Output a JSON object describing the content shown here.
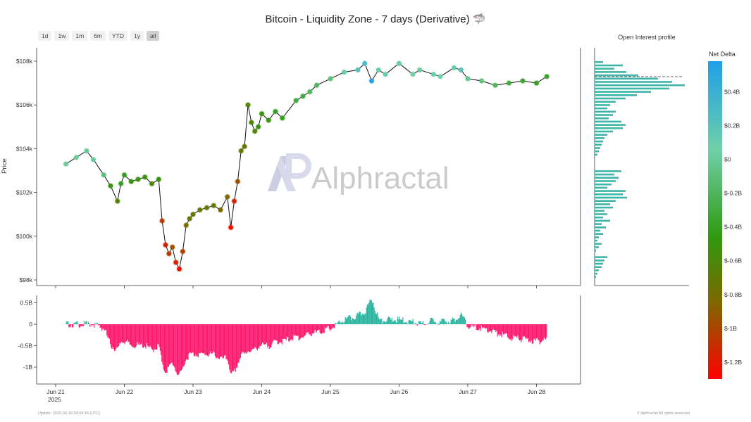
{
  "title": "Bitcoin - Liquidity Zone - 7 days (Derivative) 🦈",
  "range_buttons": [
    "1d",
    "1w",
    "1m",
    "6m",
    "YTD",
    "1y",
    "all"
  ],
  "active_range": "all",
  "watermark": "Alphractal",
  "footer_left": "Update: 2025-06-28 04:04:48 (UTC)",
  "footer_right": "© Alphractal All rights reserved",
  "chart_data": [
    {
      "type": "scatter",
      "subtype": "price line colored by net delta",
      "ylabel": "Price",
      "ylim": [
        97800,
        109100
      ],
      "yticks": [
        "$98k",
        "$100k",
        "$102k",
        "$104k",
        "$106k",
        "$108k"
      ],
      "xticks": [
        "Jun 21\n2025",
        "Jun 22",
        "Jun 23",
        "Jun 24",
        "Jun 25",
        "Jun 26",
        "Jun 27",
        "Jun 28"
      ],
      "x_days": [
        21.15,
        21.3,
        21.45,
        21.55,
        21.7,
        21.8,
        21.9,
        21.95,
        22.0,
        22.1,
        22.2,
        22.3,
        22.4,
        22.5,
        22.55,
        22.6,
        22.65,
        22.7,
        22.75,
        22.8,
        22.85,
        22.9,
        22.95,
        23.0,
        23.1,
        23.2,
        23.3,
        23.4,
        23.5,
        23.55,
        23.6,
        23.65,
        23.7,
        23.75,
        23.8,
        23.85,
        23.9,
        23.95,
        24.0,
        24.1,
        24.2,
        24.3,
        24.5,
        24.6,
        24.7,
        24.8,
        25.0,
        25.2,
        25.4,
        25.5,
        25.6,
        25.7,
        25.8,
        26.0,
        26.2,
        26.3,
        26.5,
        26.6,
        26.8,
        26.9,
        27.0,
        27.2,
        27.4,
        27.6,
        27.8,
        28.0,
        28.15
      ],
      "prices": [
        103300,
        103600,
        103900,
        103500,
        102800,
        102300,
        101600,
        102400,
        102800,
        102500,
        102600,
        102700,
        102400,
        102600,
        100700,
        99600,
        99200,
        99500,
        98800,
        98500,
        99300,
        100500,
        100800,
        101000,
        101200,
        101300,
        101400,
        101200,
        101800,
        100400,
        101600,
        102500,
        103900,
        104100,
        106000,
        105200,
        104800,
        105000,
        105600,
        105300,
        105700,
        105400,
        106200,
        106400,
        106600,
        106900,
        107200,
        107500,
        107600,
        107900,
        107100,
        107600,
        107400,
        107900,
        107400,
        107600,
        107400,
        107300,
        107700,
        107600,
        107200,
        107100,
        106900,
        107000,
        107100,
        107000,
        107300
      ],
      "net_delta_B": [
        0.0,
        0.0,
        0.0,
        0.0,
        -0.1,
        -0.5,
        -0.6,
        -0.4,
        -0.4,
        -0.5,
        -0.5,
        -0.5,
        -0.6,
        -0.5,
        -1.0,
        -1.1,
        -1.0,
        -0.9,
        -1.1,
        -1.2,
        -1.0,
        -0.8,
        -0.7,
        -0.7,
        -0.7,
        -0.7,
        -0.7,
        -0.8,
        -0.8,
        -1.2,
        -1.1,
        -0.9,
        -0.7,
        -0.7,
        -0.6,
        -0.6,
        -0.6,
        -0.5,
        -0.5,
        -0.5,
        -0.4,
        -0.4,
        -0.3,
        -0.3,
        -0.2,
        -0.2,
        -0.1,
        0.1,
        0.2,
        0.3,
        0.6,
        0.1,
        0.1,
        0.1,
        0.05,
        0.0,
        0.1,
        0.05,
        0.1,
        0.2,
        -0.05,
        -0.1,
        -0.2,
        -0.3,
        -0.35,
        -0.4,
        -0.35
      ]
    },
    {
      "type": "bar",
      "subtype": "net delta histogram",
      "ylim": [
        -1.3,
        0.6
      ],
      "yticks": [
        "0.5B",
        "0",
        "-0.5B",
        "-1B"
      ]
    },
    {
      "type": "bar",
      "orientation": "horizontal",
      "title": "Open Interest profile"
    },
    {
      "type": "colorbar",
      "title": "Net Delta",
      "ticks": [
        "$0.4B",
        "$0.2B",
        "$0",
        "$-0.2B",
        "$-0.4B",
        "$-0.6B",
        "$-0.8B",
        "$-1B",
        "$-1.2B"
      ],
      "range": [
        -1.3,
        0.58
      ],
      "colors": [
        "#ff0000",
        "#6e7a00",
        "#2f9a10",
        "#55c0a0",
        "#1ea0e8"
      ]
    }
  ]
}
